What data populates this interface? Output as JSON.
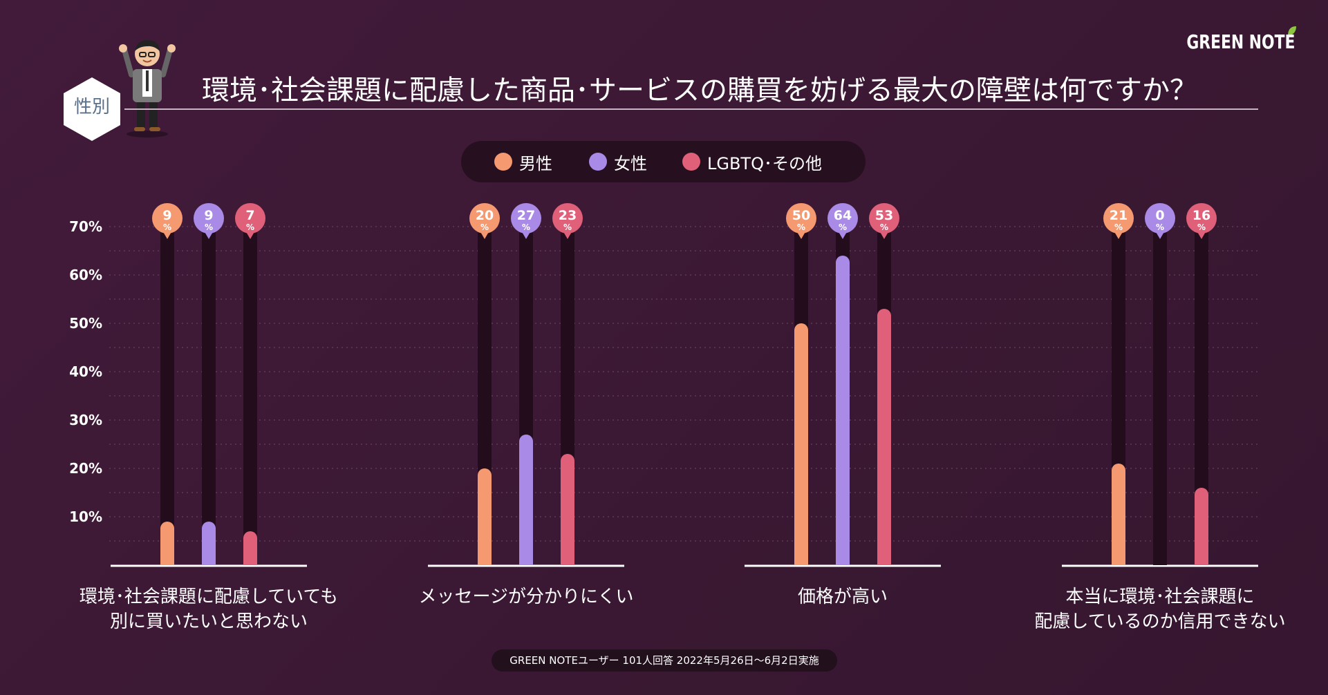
{
  "brand": {
    "logo_text": "GREEN NOTE"
  },
  "header": {
    "section_badge": "性別",
    "title": "環境･社会課題に配慮した商品･サービスの購買を妨げる最大の障壁は何ですか？"
  },
  "footer": {
    "note": "GREEN NOTEユーザー 101人回答 2022年5月26日〜6月2日実施"
  },
  "chart_data": {
    "type": "bar",
    "title": "環境･社会課題に配慮した商品･サービスの購買を妨げる最大の障壁は何ですか？",
    "unit": "%",
    "ylim": [
      0,
      70
    ],
    "y_ticks": [
      "70%",
      "60%",
      "50%",
      "40%",
      "30%",
      "20%",
      "10%"
    ],
    "y_tick_values": [
      70,
      60,
      50,
      40,
      30,
      20,
      10
    ],
    "grid": true,
    "legend_position": "top-center",
    "categories": [
      [
        "環境･社会課題に配慮していても",
        "別に買いたいと思わない"
      ],
      [
        "メッセージが分かりにくい"
      ],
      [
        "価格が高い"
      ],
      [
        "本当に環境･社会課題に",
        "配慮しているのか信用できない"
      ]
    ],
    "series": [
      {
        "name": "男性",
        "color": "#f59a70",
        "values": [
          9,
          20,
          50,
          21
        ]
      },
      {
        "name": "女性",
        "color": "#a98ae6",
        "values": [
          9,
          27,
          64,
          0
        ]
      },
      {
        "name": "LGBTQ･その他",
        "color": "#e0607a",
        "values": [
          7,
          23,
          53,
          16
        ]
      }
    ],
    "label_suffix": "%"
  }
}
